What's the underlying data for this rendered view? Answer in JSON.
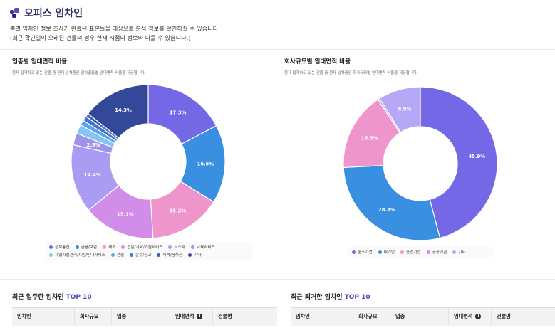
{
  "header": {
    "title": "오피스 임차인",
    "desc_line1": "층별 임차인 정보 조사가 완료된 표본들을 대상으로 분석 정보를 확인하실 수 있습니다.",
    "desc_line2": "(최근 확인일이 오래된 건물의 경우 현재 시점의 정보와 다를 수 있습니다.)"
  },
  "industry_panel": {
    "title": "업종별 임대면적 비율",
    "subtitle": "현재 탑재하고 있는 건물 중 현재 임차중인 임차업종별 임대면적 비율을 제공합니다.",
    "legend": [
      {
        "label": "정보통신",
        "color": "#7468e6"
      },
      {
        "label": "금융/보험",
        "color": "#3a90e0"
      },
      {
        "label": "제조",
        "color": "#ee95cb"
      },
      {
        "label": "전문/과학/기술서비스",
        "color": "#d28de8"
      },
      {
        "label": "도소매",
        "color": "#aa9cf2"
      },
      {
        "label": "교육서비스",
        "color": "#9c92e8"
      },
      {
        "label": "사업시설관리/지원/임대서비스",
        "color": "#86c4f5"
      },
      {
        "label": "건설",
        "color": "#5ba4ea"
      },
      {
        "label": "운수/창고",
        "color": "#4173c6"
      },
      {
        "label": "숙박/음식점",
        "color": "#3a63b8"
      },
      {
        "label": "기타",
        "color": "#34489a"
      }
    ]
  },
  "size_panel": {
    "title": "회사규모별 임대면적 비율",
    "subtitle": "현재 탑재하고 있는 건물 중 현재 임차중인 회사규모별 임대면적 비율을 제공합니다.",
    "legend": [
      {
        "label": "중소기업",
        "color": "#7468e6"
      },
      {
        "label": "대기업",
        "color": "#3a90e0"
      },
      {
        "label": "중견기업",
        "color": "#ee95cb"
      },
      {
        "label": "공공기관",
        "color": "#d28de8"
      },
      {
        "label": "기타",
        "color": "#b6a8f7"
      }
    ]
  },
  "chart_data": [
    {
      "type": "pie",
      "categories": [
        "정보통신",
        "금융/보험",
        "제조",
        "전문/과학/기술서비스",
        "도소매",
        "교육서비스",
        "사업시설관리/지원/임대서비스",
        "건설",
        "운수/창고",
        "숙박/음식점",
        "기타"
      ],
      "values": [
        17.3,
        16.5,
        15.2,
        15.1,
        14.4,
        2.5,
        1.9,
        1.1,
        1.0,
        0.7,
        14.3
      ],
      "labels": [
        "17.3%",
        "16.5%",
        "15.2%",
        "15.1%",
        "14.4%",
        "2.5%",
        "",
        "",
        "",
        "",
        "14.3%"
      ],
      "title": "업종별 임대면적 비율"
    },
    {
      "type": "pie",
      "categories": [
        "중소기업",
        "대기업",
        "중견기업",
        "공공기관",
        "기타"
      ],
      "values": [
        45.9,
        28.3,
        16.5,
        0.4,
        8.9
      ],
      "labels": [
        "45.9%",
        "28.3%",
        "16.5%",
        "",
        "8.9%"
      ],
      "title": "회사규모별 임대면적 비율"
    }
  ],
  "recent_in": {
    "title_prefix": "최근 입주한 임차인 ",
    "title_accent": "TOP 10",
    "columns": [
      "임차인",
      "회사규모",
      "업종",
      "임대면적",
      "건물명"
    ]
  },
  "recent_out": {
    "title_prefix": "최근 퇴거한 임차인 ",
    "title_accent": "TOP 10",
    "columns": [
      "임차인",
      "회사규모",
      "업종",
      "임대면적",
      "건물명"
    ]
  }
}
